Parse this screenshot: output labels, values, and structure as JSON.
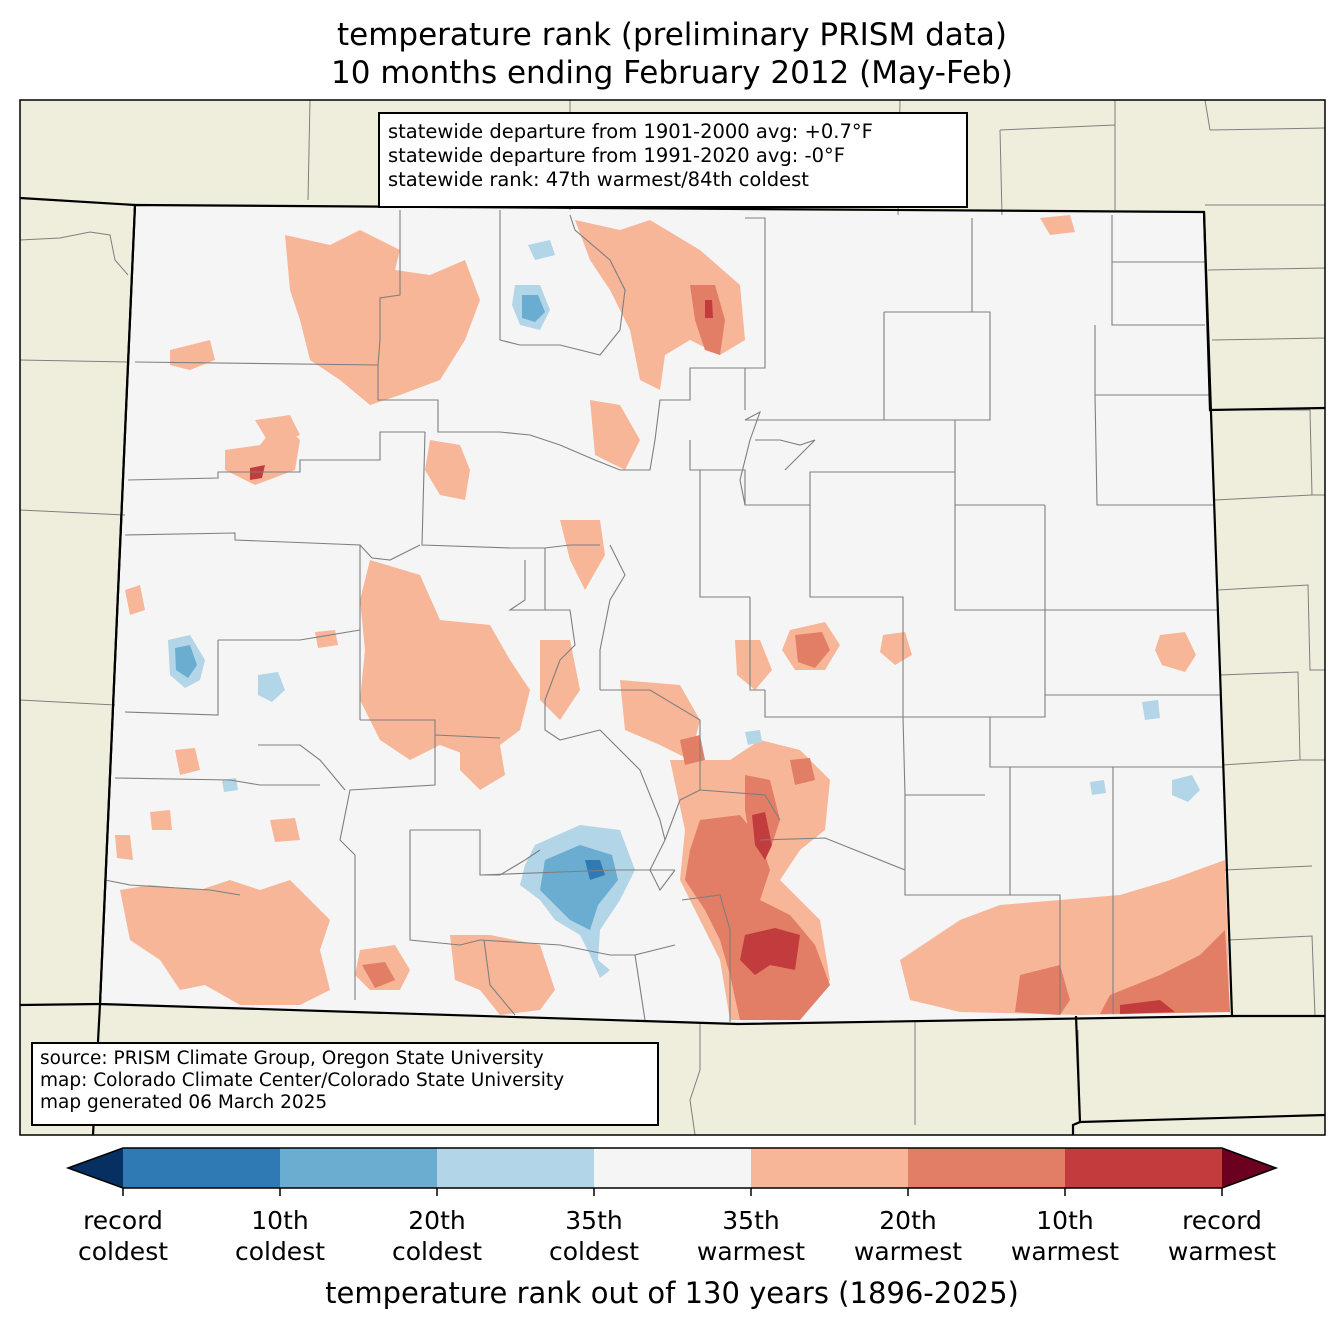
{
  "title_line1": "temperature rank (preliminary PRISM data)",
  "title_line2": "10 months ending February 2012 (May-Feb)",
  "stats": {
    "line1": "statewide departure from 1901-2000 avg: +0.7°F",
    "line2": "statewide departure from 1991-2020 avg: -0°F",
    "line3": "statewide rank: 47th warmest/84th coldest"
  },
  "source": {
    "line1": "source: PRISM Climate Group, Oregon State University",
    "line2": "map: Colorado Climate Center/Colorado State University",
    "line3": "map generated 06 March 2025"
  },
  "colorbar": {
    "title": "temperature rank out of 130 years (1896-2025)",
    "labels": [
      {
        "top": "record",
        "bottom": "coldest"
      },
      {
        "top": "10th",
        "bottom": "coldest"
      },
      {
        "top": "20th",
        "bottom": "coldest"
      },
      {
        "top": "35th",
        "bottom": "coldest"
      },
      {
        "top": "35th",
        "bottom": "warmest"
      },
      {
        "top": "20th",
        "bottom": "warmest"
      },
      {
        "top": "10th",
        "bottom": "warmest"
      },
      {
        "top": "record",
        "bottom": "warmest"
      }
    ],
    "colors": [
      "#053061",
      "#2f79b5",
      "#6bacd1",
      "#b2d5e7",
      "#f5f5f5",
      "#f7b698",
      "#e27d66",
      "#c23b3d",
      "#6c001f"
    ]
  },
  "colors": {
    "land_outside": "#efeedd",
    "state_fill": "#f5f5f5",
    "county_line": "#7f7f7f",
    "state_line": "#000000"
  }
}
